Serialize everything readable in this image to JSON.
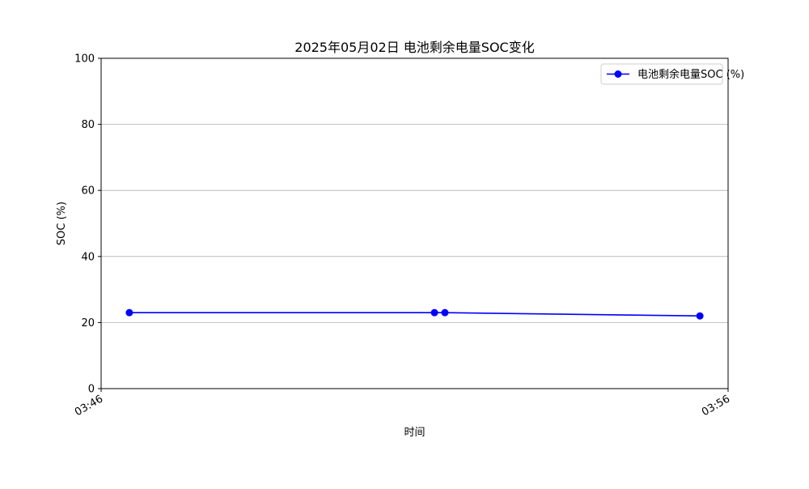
{
  "chart_data": {
    "type": "line",
    "title": "2025年05月02日 电池剩余电量SOC变化",
    "xlabel": "时间",
    "ylabel": "SOC (%)",
    "x_ticks": [
      "03:46",
      "03:56"
    ],
    "y_ticks": [
      "0",
      "20",
      "40",
      "60",
      "80",
      "100"
    ],
    "xlim": [
      "03:46",
      "03:56"
    ],
    "ylim": [
      0,
      100
    ],
    "grid": "y",
    "legend_position": "upper-right",
    "series": [
      {
        "name": "电池剩余电量SOC (%)",
        "color": "#0000ff",
        "x": [
          "03:46:27",
          "03:51:19",
          "03:51:29",
          "03:55:33"
        ],
        "y": [
          23,
          23,
          23,
          22
        ]
      }
    ]
  }
}
